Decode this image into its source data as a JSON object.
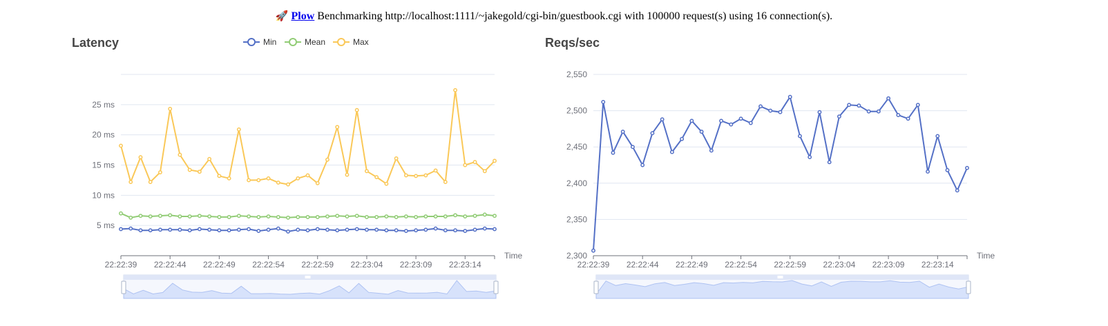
{
  "header": {
    "icon": "rocket-icon",
    "link_text": "Plow",
    "text": " Benchmarking http://localhost:1111/~jakegold/cgi-bin/guestbook.cgi with 100000 request(s) using 16 connection(s)."
  },
  "chart_data": [
    {
      "type": "line",
      "title": "Latency",
      "xlabel": "Time",
      "ylabel": "",
      "x_ticks": [
        "22:22:39",
        "22:22:44",
        "22:22:49",
        "22:22:54",
        "22:22:59",
        "22:23:04",
        "22:23:09",
        "22:23:14"
      ],
      "y_ticks": [
        "5 ms",
        "10 ms",
        "15 ms",
        "20 ms",
        "25 ms"
      ],
      "ylim": [
        0,
        30
      ],
      "grid": true,
      "legend_position": "top-center",
      "data_zoom_slider": true,
      "series": [
        {
          "name": "Min",
          "color": "#5470c6",
          "values": [
            4.4,
            4.5,
            4.2,
            4.2,
            4.3,
            4.3,
            4.3,
            4.2,
            4.4,
            4.3,
            4.2,
            4.2,
            4.3,
            4.4,
            4.1,
            4.3,
            4.5,
            4.0,
            4.3,
            4.2,
            4.4,
            4.3,
            4.2,
            4.3,
            4.4,
            4.3,
            4.3,
            4.2,
            4.2,
            4.1,
            4.2,
            4.3,
            4.5,
            4.2,
            4.2,
            4.1,
            4.3,
            4.5,
            4.4
          ]
        },
        {
          "name": "Mean",
          "color": "#91cc75",
          "values": [
            7.0,
            6.3,
            6.6,
            6.5,
            6.6,
            6.7,
            6.5,
            6.5,
            6.6,
            6.5,
            6.4,
            6.4,
            6.6,
            6.5,
            6.4,
            6.5,
            6.4,
            6.3,
            6.4,
            6.4,
            6.4,
            6.5,
            6.6,
            6.5,
            6.6,
            6.4,
            6.4,
            6.5,
            6.4,
            6.5,
            6.4,
            6.5,
            6.5,
            6.5,
            6.7,
            6.5,
            6.6,
            6.8,
            6.6
          ]
        },
        {
          "name": "Max",
          "color": "#fac858",
          "values": [
            18.2,
            12.2,
            16.3,
            12.2,
            13.8,
            24.3,
            16.7,
            14.2,
            13.9,
            16.0,
            13.2,
            12.8,
            20.9,
            12.5,
            12.5,
            12.8,
            12.1,
            11.8,
            12.8,
            13.3,
            12.0,
            15.9,
            21.3,
            13.4,
            24.1,
            14.0,
            13.0,
            11.9,
            16.1,
            13.3,
            13.2,
            13.3,
            14.1,
            12.2,
            27.4,
            15.0,
            15.5,
            14.0,
            15.7
          ]
        }
      ]
    },
    {
      "type": "line",
      "title": "Reqs/sec",
      "xlabel": "Time",
      "ylabel": "",
      "x_ticks": [
        "22:22:39",
        "22:22:44",
        "22:22:49",
        "22:22:54",
        "22:22:59",
        "22:23:04",
        "22:23:09",
        "22:23:14"
      ],
      "y_ticks": [
        "2,300",
        "2,350",
        "2,400",
        "2,450",
        "2,500",
        "2,550"
      ],
      "ylim": [
        2300,
        2550
      ],
      "grid": true,
      "data_zoom_slider": true,
      "series": [
        {
          "color": "#5470c6",
          "values": [
            2307,
            2512,
            2442,
            2471,
            2450,
            2425,
            2469,
            2488,
            2443,
            2461,
            2486,
            2471,
            2445,
            2486,
            2481,
            2489,
            2483,
            2506,
            2500,
            2498,
            2519,
            2465,
            2436,
            2498,
            2429,
            2492,
            2508,
            2507,
            2499,
            2499,
            2517,
            2494,
            2489,
            2508,
            2416,
            2465,
            2418,
            2390,
            2421
          ]
        }
      ]
    }
  ]
}
